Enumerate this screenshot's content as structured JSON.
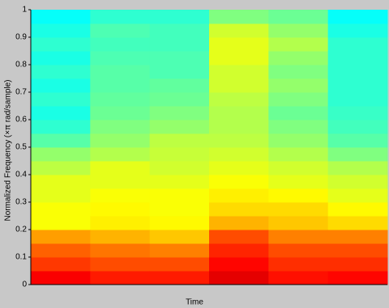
{
  "chart_data": {
    "type": "heatmap",
    "ylabel": "Normalized Frequency  (×π rad/sample)",
    "xlabel": "Time",
    "colormap": "jet",
    "ylim": [
      0,
      1
    ],
    "yticks": [
      0,
      0.1,
      0.2,
      0.3,
      0.4,
      0.5,
      0.6,
      0.7,
      0.8,
      0.9,
      1
    ],
    "bins": [
      0,
      0.05,
      0.1,
      0.15,
      0.2,
      0.25,
      0.3,
      0.35,
      0.4,
      0.45,
      0.5,
      0.55,
      0.6,
      0.65,
      0.7,
      0.75,
      0.8,
      0.85,
      0.9,
      0.95,
      1
    ],
    "values": [
      [
        0.88,
        0.82,
        0.78,
        0.72,
        0.62,
        0.62,
        0.6,
        0.6,
        0.56,
        0.52,
        0.46,
        0.42,
        0.4,
        0.42,
        0.4,
        0.42,
        0.4,
        0.42,
        0.4,
        0.38
      ],
      [
        0.85,
        0.8,
        0.76,
        0.7,
        0.64,
        0.63,
        0.62,
        0.6,
        0.6,
        0.55,
        0.52,
        0.5,
        0.48,
        0.47,
        0.46,
        0.46,
        0.45,
        0.44,
        0.45,
        0.42
      ],
      [
        0.85,
        0.8,
        0.75,
        0.68,
        0.63,
        0.62,
        0.62,
        0.6,
        0.58,
        0.57,
        0.56,
        0.52,
        0.5,
        0.48,
        0.47,
        0.45,
        0.45,
        0.44,
        0.44,
        0.42
      ],
      [
        0.9,
        0.87,
        0.84,
        0.8,
        0.7,
        0.66,
        0.64,
        0.62,
        0.6,
        0.58,
        0.56,
        0.55,
        0.55,
        0.56,
        0.58,
        0.58,
        0.6,
        0.6,
        0.58,
        0.5
      ],
      [
        0.86,
        0.83,
        0.8,
        0.75,
        0.68,
        0.66,
        0.63,
        0.6,
        0.58,
        0.55,
        0.52,
        0.5,
        0.48,
        0.5,
        0.52,
        0.5,
        0.52,
        0.55,
        0.52,
        0.48
      ],
      [
        0.87,
        0.83,
        0.8,
        0.75,
        0.66,
        0.63,
        0.6,
        0.58,
        0.55,
        0.5,
        0.46,
        0.44,
        0.43,
        0.42,
        0.42,
        0.42,
        0.42,
        0.42,
        0.4,
        0.38
      ]
    ]
  }
}
